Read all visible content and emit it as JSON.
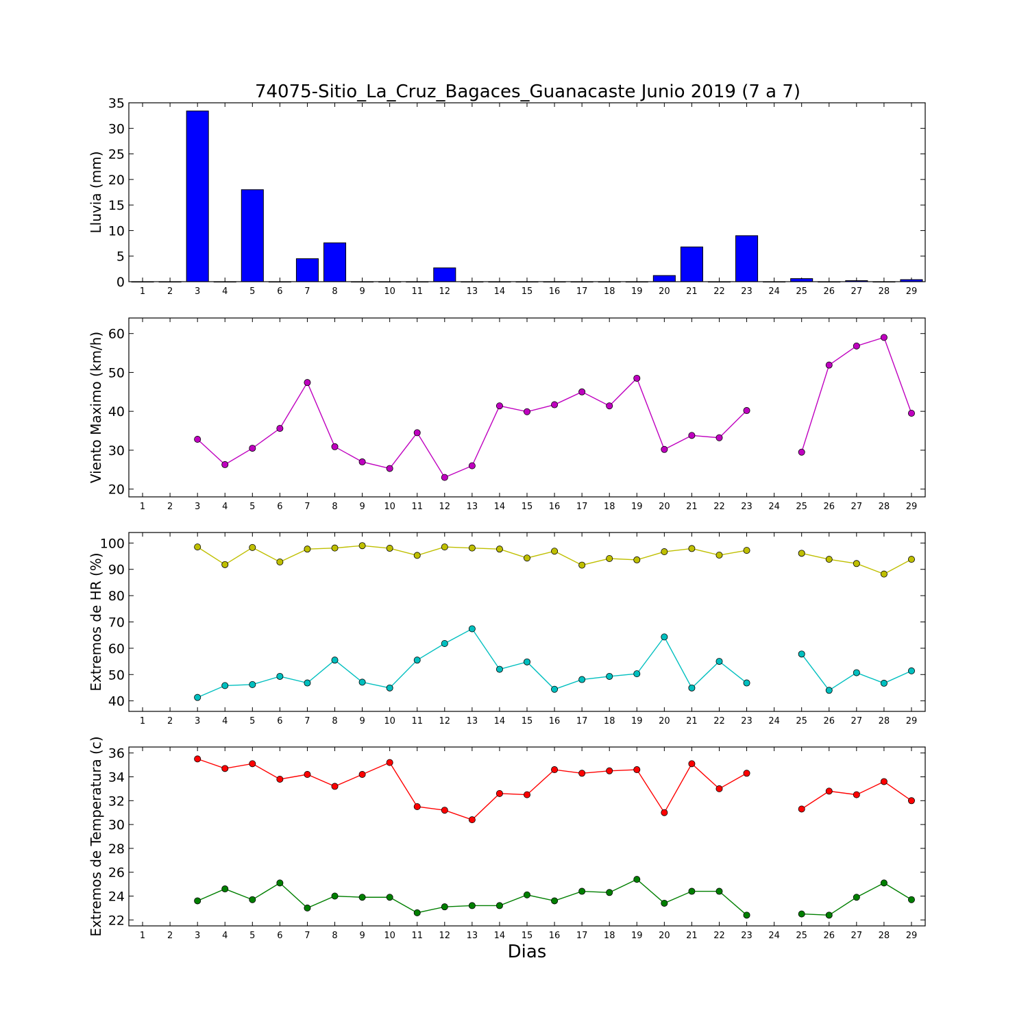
{
  "chart_data": {
    "title": "74075-Sitio_La_Cruz_Bagaces_Guanacaste Junio 2019  (7 a 7)",
    "xlabel": "Dias",
    "days": [
      1,
      2,
      3,
      4,
      5,
      6,
      7,
      8,
      9,
      10,
      11,
      12,
      13,
      14,
      15,
      16,
      17,
      18,
      19,
      20,
      21,
      22,
      23,
      24,
      25,
      26,
      27,
      28,
      29
    ],
    "panels": [
      {
        "type": "bar",
        "ylabel": "Lluvia (mm)",
        "ylim": [
          0,
          35
        ],
        "yticks": [
          0,
          5,
          10,
          15,
          20,
          25,
          30,
          35
        ],
        "series": [
          {
            "color": "#0000ff",
            "values": [
              0,
              0,
              33.4,
              0,
              18.0,
              0,
              4.5,
              7.6,
              0,
              0,
              0,
              2.7,
              0,
              0,
              0,
              0,
              0,
              0,
              0,
              1.2,
              6.8,
              0,
              9.0,
              0,
              0.6,
              0,
              0.2,
              0,
              0.4
            ]
          }
        ]
      },
      {
        "type": "line",
        "ylabel": "Viento Maximo (km/h)",
        "ylim": [
          18,
          64
        ],
        "yticks": [
          20,
          30,
          40,
          50,
          60
        ],
        "series": [
          {
            "color": "#bf00bf",
            "values": [
              null,
              null,
              32.8,
              26.3,
              30.5,
              35.6,
              47.4,
              30.9,
              27.0,
              25.3,
              34.5,
              23.0,
              26.0,
              41.4,
              39.9,
              41.7,
              45.0,
              41.4,
              48.5,
              30.2,
              33.8,
              33.2,
              40.2,
              null,
              29.5,
              51.9,
              56.8,
              59.0,
              39.5
            ]
          }
        ]
      },
      {
        "type": "line",
        "ylabel": "Extremos de HR (%)",
        "ylim": [
          36,
          104
        ],
        "yticks": [
          40,
          50,
          60,
          70,
          80,
          90,
          100
        ],
        "series": [
          {
            "color": "#bfbf00",
            "values": [
              null,
              null,
              98.5,
              91.8,
              98.3,
              92.8,
              97.7,
              98.1,
              99.0,
              98.0,
              95.3,
              98.5,
              98.1,
              97.7,
              94.3,
              96.9,
              91.6,
              94.1,
              93.6,
              96.7,
              97.9,
              95.4,
              97.2,
              null,
              96.1,
              93.8,
              92.2,
              88.2,
              93.8
            ]
          },
          {
            "color": "#00bfbf",
            "values": [
              null,
              null,
              41.3,
              45.8,
              46.2,
              49.3,
              46.8,
              55.5,
              47.1,
              44.9,
              55.5,
              61.8,
              67.4,
              52.0,
              54.8,
              44.4,
              48.1,
              49.3,
              50.3,
              64.3,
              44.9,
              55.0,
              46.8,
              null,
              57.8,
              44.0,
              50.7,
              46.7,
              51.4
            ]
          }
        ]
      },
      {
        "type": "line",
        "ylabel": "Extremos de Temperatura (c)",
        "ylim": [
          21.5,
          36.5
        ],
        "yticks": [
          22,
          24,
          26,
          28,
          30,
          32,
          34,
          36
        ],
        "series": [
          {
            "color": "#ff0000",
            "values": [
              null,
              null,
              35.5,
              34.7,
              35.1,
              33.8,
              34.2,
              33.2,
              34.2,
              35.2,
              31.5,
              31.2,
              30.4,
              32.6,
              32.5,
              34.6,
              34.3,
              34.5,
              34.6,
              31.0,
              35.1,
              33.0,
              34.3,
              null,
              31.3,
              32.8,
              32.5,
              33.6,
              32.0
            ]
          },
          {
            "color": "#007f00",
            "values": [
              null,
              null,
              23.6,
              24.6,
              23.7,
              25.1,
              23.0,
              24.0,
              23.9,
              23.9,
              22.6,
              23.1,
              23.2,
              23.2,
              24.1,
              23.6,
              24.4,
              24.3,
              25.4,
              23.4,
              24.4,
              24.4,
              22.4,
              null,
              22.5,
              22.4,
              23.9,
              25.1,
              23.7
            ]
          }
        ]
      }
    ]
  }
}
